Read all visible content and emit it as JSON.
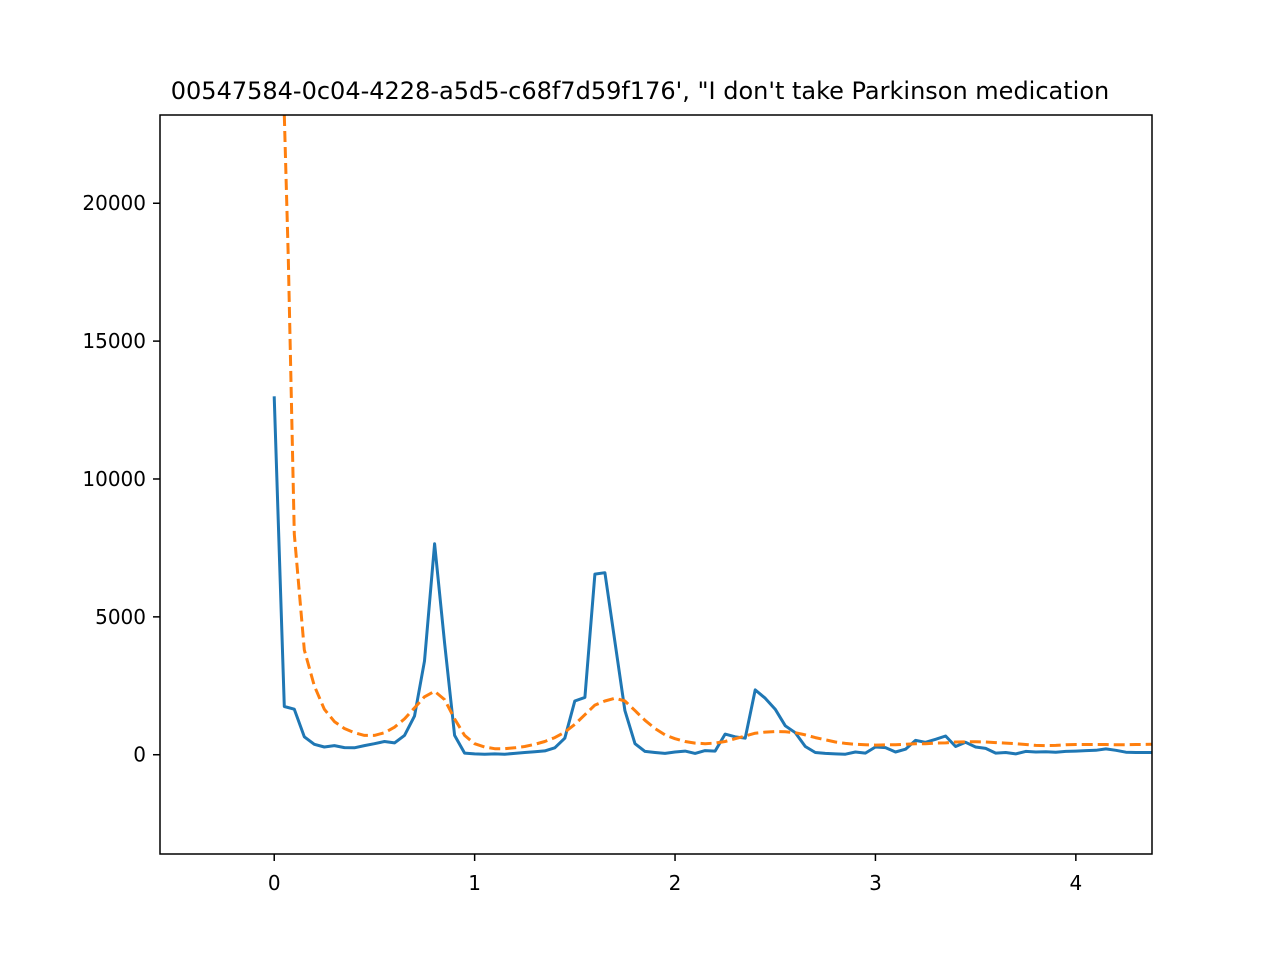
{
  "chart_data": {
    "type": "line",
    "title": "00547584-0c04-4228-a5d5-c68f7d59f176', \"I don't take Parkinson medication",
    "xlabel": "",
    "ylabel": "",
    "xlim": [
      -0.57,
      4.38
    ],
    "ylim": [
      -3600,
      23200
    ],
    "x_ticks": [
      0,
      1,
      2,
      3,
      4
    ],
    "y_ticks": [
      0,
      5000,
      10000,
      15000,
      20000
    ],
    "x_tick_labels": [
      "0",
      "1",
      "2",
      "3",
      "4"
    ],
    "y_tick_labels": [
      "0",
      "5000",
      "10000",
      "15000",
      "20000"
    ],
    "grid": false,
    "legend": "none",
    "series": [
      {
        "color": "#1f77b4",
        "style": "solid",
        "points": [
          [
            0.0,
            13000
          ],
          [
            0.05,
            1750
          ],
          [
            0.1,
            1650
          ],
          [
            0.15,
            650
          ],
          [
            0.2,
            380
          ],
          [
            0.25,
            280
          ],
          [
            0.3,
            330
          ],
          [
            0.35,
            260
          ],
          [
            0.4,
            250
          ],
          [
            0.45,
            330
          ],
          [
            0.5,
            400
          ],
          [
            0.55,
            480
          ],
          [
            0.6,
            430
          ],
          [
            0.65,
            700
          ],
          [
            0.7,
            1400
          ],
          [
            0.75,
            3400
          ],
          [
            0.8,
            7650
          ],
          [
            0.85,
            4050
          ],
          [
            0.9,
            700
          ],
          [
            0.95,
            60
          ],
          [
            1.0,
            30
          ],
          [
            1.05,
            20
          ],
          [
            1.1,
            30
          ],
          [
            1.15,
            20
          ],
          [
            1.2,
            50
          ],
          [
            1.25,
            80
          ],
          [
            1.3,
            110
          ],
          [
            1.35,
            140
          ],
          [
            1.4,
            250
          ],
          [
            1.45,
            600
          ],
          [
            1.5,
            1950
          ],
          [
            1.55,
            2080
          ],
          [
            1.6,
            6550
          ],
          [
            1.65,
            6600
          ],
          [
            1.7,
            4100
          ],
          [
            1.75,
            1600
          ],
          [
            1.8,
            400
          ],
          [
            1.85,
            120
          ],
          [
            1.9,
            80
          ],
          [
            1.95,
            50
          ],
          [
            2.0,
            100
          ],
          [
            2.05,
            130
          ],
          [
            2.1,
            50
          ],
          [
            2.15,
            150
          ],
          [
            2.2,
            130
          ],
          [
            2.25,
            750
          ],
          [
            2.3,
            650
          ],
          [
            2.35,
            600
          ],
          [
            2.4,
            2350
          ],
          [
            2.45,
            2050
          ],
          [
            2.5,
            1650
          ],
          [
            2.55,
            1050
          ],
          [
            2.6,
            800
          ],
          [
            2.65,
            300
          ],
          [
            2.7,
            80
          ],
          [
            2.75,
            50
          ],
          [
            2.8,
            30
          ],
          [
            2.85,
            20
          ],
          [
            2.9,
            100
          ],
          [
            2.95,
            60
          ],
          [
            3.0,
            280
          ],
          [
            3.05,
            260
          ],
          [
            3.1,
            100
          ],
          [
            3.15,
            200
          ],
          [
            3.2,
            520
          ],
          [
            3.25,
            450
          ],
          [
            3.3,
            560
          ],
          [
            3.35,
            680
          ],
          [
            3.4,
            300
          ],
          [
            3.45,
            450
          ],
          [
            3.5,
            280
          ],
          [
            3.55,
            230
          ],
          [
            3.6,
            60
          ],
          [
            3.65,
            80
          ],
          [
            3.7,
            30
          ],
          [
            3.75,
            120
          ],
          [
            3.8,
            100
          ],
          [
            3.85,
            110
          ],
          [
            3.9,
            90
          ],
          [
            3.95,
            120
          ],
          [
            4.0,
            130
          ],
          [
            4.05,
            150
          ],
          [
            4.1,
            160
          ],
          [
            4.15,
            210
          ],
          [
            4.2,
            160
          ],
          [
            4.25,
            90
          ],
          [
            4.3,
            80
          ],
          [
            4.38,
            80
          ]
        ]
      },
      {
        "color": "#ff7f0e",
        "style": "dashed",
        "points": [
          [
            0.05,
            23200
          ],
          [
            0.07,
            18000
          ],
          [
            0.1,
            8000
          ],
          [
            0.15,
            3800
          ],
          [
            0.2,
            2500
          ],
          [
            0.25,
            1650
          ],
          [
            0.3,
            1200
          ],
          [
            0.35,
            950
          ],
          [
            0.4,
            800
          ],
          [
            0.45,
            700
          ],
          [
            0.5,
            700
          ],
          [
            0.55,
            800
          ],
          [
            0.6,
            1000
          ],
          [
            0.65,
            1300
          ],
          [
            0.7,
            1700
          ],
          [
            0.75,
            2100
          ],
          [
            0.8,
            2300
          ],
          [
            0.85,
            2000
          ],
          [
            0.9,
            1300
          ],
          [
            0.95,
            700
          ],
          [
            1.0,
            400
          ],
          [
            1.05,
            280
          ],
          [
            1.1,
            220
          ],
          [
            1.15,
            220
          ],
          [
            1.2,
            250
          ],
          [
            1.25,
            300
          ],
          [
            1.3,
            380
          ],
          [
            1.35,
            480
          ],
          [
            1.4,
            620
          ],
          [
            1.45,
            820
          ],
          [
            1.5,
            1100
          ],
          [
            1.55,
            1450
          ],
          [
            1.6,
            1800
          ],
          [
            1.65,
            1950
          ],
          [
            1.7,
            2050
          ],
          [
            1.75,
            1950
          ],
          [
            1.8,
            1600
          ],
          [
            1.85,
            1250
          ],
          [
            1.9,
            950
          ],
          [
            1.95,
            720
          ],
          [
            2.0,
            580
          ],
          [
            2.05,
            480
          ],
          [
            2.1,
            420
          ],
          [
            2.15,
            400
          ],
          [
            2.2,
            420
          ],
          [
            2.25,
            480
          ],
          [
            2.3,
            580
          ],
          [
            2.35,
            680
          ],
          [
            2.4,
            780
          ],
          [
            2.45,
            820
          ],
          [
            2.5,
            840
          ],
          [
            2.55,
            830
          ],
          [
            2.6,
            800
          ],
          [
            2.65,
            720
          ],
          [
            2.7,
            620
          ],
          [
            2.75,
            540
          ],
          [
            2.8,
            460
          ],
          [
            2.85,
            410
          ],
          [
            2.9,
            380
          ],
          [
            2.95,
            360
          ],
          [
            3.0,
            350
          ],
          [
            3.05,
            360
          ],
          [
            3.1,
            360
          ],
          [
            3.15,
            380
          ],
          [
            3.2,
            400
          ],
          [
            3.25,
            400
          ],
          [
            3.3,
            420
          ],
          [
            3.35,
            430
          ],
          [
            3.4,
            460
          ],
          [
            3.45,
            470
          ],
          [
            3.5,
            470
          ],
          [
            3.55,
            460
          ],
          [
            3.6,
            440
          ],
          [
            3.65,
            420
          ],
          [
            3.7,
            400
          ],
          [
            3.75,
            370
          ],
          [
            3.8,
            340
          ],
          [
            3.85,
            330
          ],
          [
            3.9,
            340
          ],
          [
            3.95,
            360
          ],
          [
            4.0,
            370
          ],
          [
            4.05,
            370
          ],
          [
            4.1,
            370
          ],
          [
            4.15,
            370
          ],
          [
            4.2,
            360
          ],
          [
            4.25,
            360
          ],
          [
            4.3,
            370
          ],
          [
            4.38,
            380
          ]
        ]
      }
    ]
  }
}
